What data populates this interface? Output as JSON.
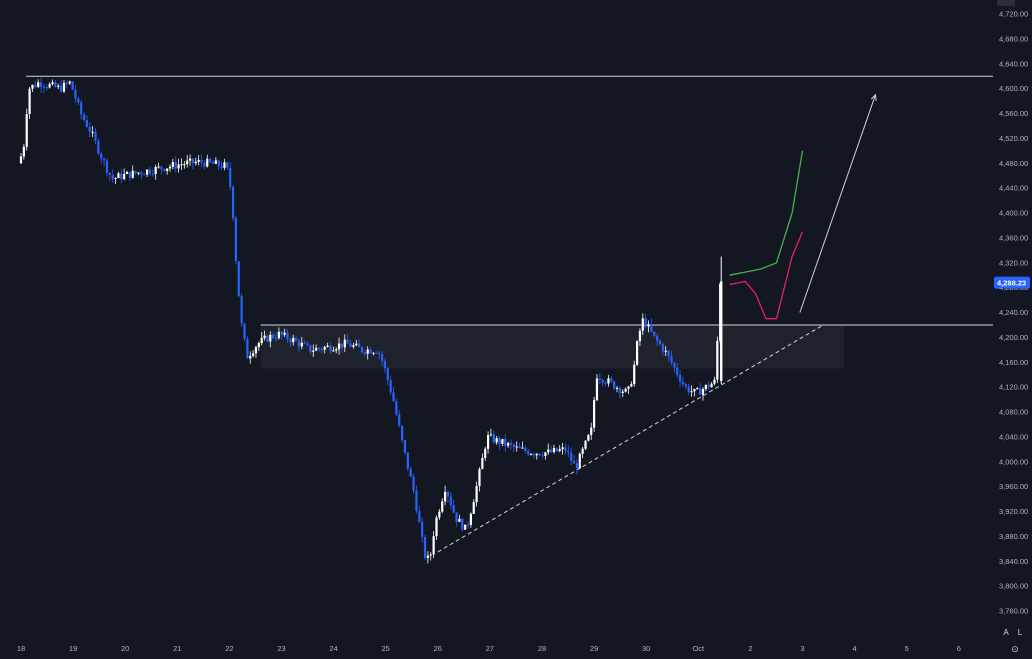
{
  "chart_data": {
    "type": "candlestick",
    "symbol_price_label": "4,288.23",
    "y_axis": {
      "ticks": [
        "4,720.00",
        "4,680.00",
        "4,640.00",
        "4,600.00",
        "4,560.00",
        "4,520.00",
        "4,480.00",
        "4,440.00",
        "4,400.00",
        "4,360.00",
        "4,320.00",
        "4,280.00",
        "4,240.00",
        "4,200.00",
        "4,160.00",
        "4,120.00",
        "4,080.00",
        "4,040.00",
        "4,000.00",
        "3,960.00",
        "3,920.00",
        "3,880.00",
        "3,840.00",
        "3,800.00",
        "3,760.00"
      ],
      "range": [
        3740,
        4745
      ]
    },
    "x_axis": {
      "ticks": [
        "18",
        "19",
        "20",
        "21",
        "22",
        "23",
        "24",
        "25",
        "26",
        "27",
        "28",
        "29",
        "30",
        "Oct",
        "2",
        "3",
        "4",
        "5",
        "6"
      ]
    },
    "price_path": [
      [
        18.0,
        4480
      ],
      [
        18.1,
        4500
      ],
      [
        18.2,
        4600
      ],
      [
        18.4,
        4610
      ],
      [
        18.6,
        4605
      ],
      [
        18.8,
        4600
      ],
      [
        19.0,
        4610
      ],
      [
        19.2,
        4560
      ],
      [
        19.4,
        4530
      ],
      [
        19.6,
        4490
      ],
      [
        19.8,
        4455
      ],
      [
        20.0,
        4460
      ],
      [
        20.3,
        4465
      ],
      [
        20.6,
        4470
      ],
      [
        20.9,
        4475
      ],
      [
        21.2,
        4480
      ],
      [
        21.5,
        4482
      ],
      [
        21.8,
        4478
      ],
      [
        22.0,
        4475
      ],
      [
        22.1,
        4430
      ],
      [
        22.2,
        4300
      ],
      [
        22.3,
        4210
      ],
      [
        22.4,
        4170
      ],
      [
        22.6,
        4190
      ],
      [
        22.8,
        4200
      ],
      [
        23.0,
        4205
      ],
      [
        23.3,
        4195
      ],
      [
        23.6,
        4180
      ],
      [
        24.0,
        4185
      ],
      [
        24.3,
        4190
      ],
      [
        24.6,
        4180
      ],
      [
        24.9,
        4180
      ],
      [
        25.0,
        4160
      ],
      [
        25.2,
        4100
      ],
      [
        25.4,
        4020
      ],
      [
        25.6,
        3950
      ],
      [
        25.8,
        3850
      ],
      [
        25.9,
        3840
      ],
      [
        26.0,
        3900
      ],
      [
        26.2,
        3960
      ],
      [
        26.4,
        3910
      ],
      [
        26.6,
        3890
      ],
      [
        26.8,
        3960
      ],
      [
        27.0,
        4040
      ],
      [
        27.3,
        4030
      ],
      [
        27.6,
        4020
      ],
      [
        27.9,
        4015
      ],
      [
        28.2,
        4015
      ],
      [
        28.5,
        4020
      ],
      [
        28.7,
        3990
      ],
      [
        28.9,
        4030
      ],
      [
        29.0,
        4050
      ],
      [
        29.1,
        4140
      ],
      [
        29.3,
        4130
      ],
      [
        29.5,
        4120
      ],
      [
        29.7,
        4110
      ],
      [
        29.8,
        4140
      ],
      [
        29.9,
        4200
      ],
      [
        30.0,
        4230
      ],
      [
        30.2,
        4200
      ],
      [
        30.4,
        4180
      ],
      [
        30.6,
        4150
      ],
      [
        30.8,
        4120
      ],
      [
        31.0,
        4110
      ],
      [
        31.2,
        4120
      ],
      [
        31.4,
        4130
      ],
      [
        31.45,
        4290
      ]
    ],
    "lines": {
      "resistance_top": 4620,
      "resistance_mid": 4220,
      "zone": [
        4150,
        4220
      ]
    },
    "trendline": {
      "from": [
        26.0,
        3855
      ],
      "to": [
        33.4,
        4220
      ],
      "style": "dashed"
    },
    "projections": [
      {
        "color": "#4caf50",
        "path": [
          [
            31.6,
            4300
          ],
          [
            31.9,
            4305
          ],
          [
            32.2,
            4310
          ],
          [
            32.5,
            4320
          ],
          [
            32.8,
            4400
          ],
          [
            33.0,
            4500
          ]
        ]
      },
      {
        "color": "#e91e63",
        "path": [
          [
            31.6,
            4285
          ],
          [
            31.9,
            4290
          ],
          [
            32.1,
            4270
          ],
          [
            32.3,
            4230
          ],
          [
            32.5,
            4230
          ],
          [
            32.8,
            4330
          ],
          [
            33.0,
            4370
          ]
        ]
      }
    ],
    "arrow": {
      "from": [
        32.95,
        4240
      ],
      "to": [
        34.4,
        4590
      ]
    },
    "colors": {
      "up": "#ffffff",
      "down": "#2962ff",
      "price_tag": "#2962ff",
      "background": "#131722"
    }
  },
  "controls": {
    "auto_label": "A",
    "log_label": "L",
    "settings_icon": "⊙"
  }
}
